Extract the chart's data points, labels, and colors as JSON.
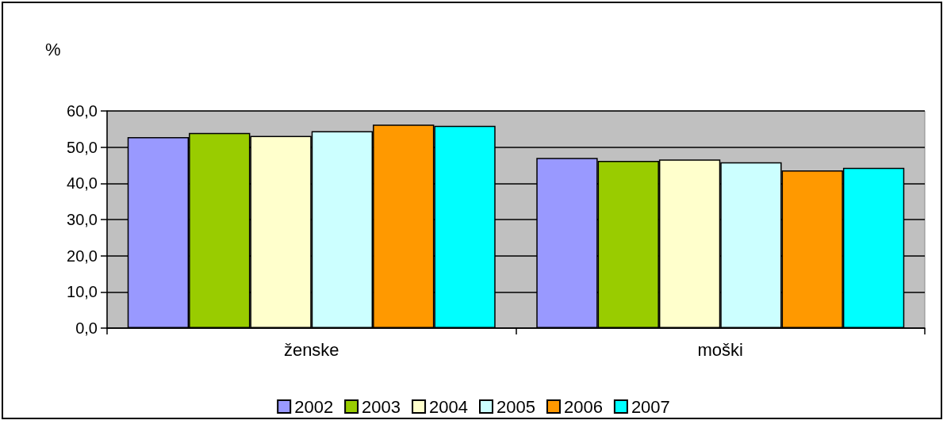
{
  "chart_data": {
    "type": "bar",
    "ylabel": "%",
    "categories": [
      "ženske",
      "moški"
    ],
    "series": [
      {
        "name": "2002",
        "color": "#9999ff",
        "values": [
          52.8,
          47.0
        ]
      },
      {
        "name": "2003",
        "color": "#99cc00",
        "values": [
          53.9,
          46.2
        ]
      },
      {
        "name": "2004",
        "color": "#ffffcc",
        "values": [
          53.1,
          46.6
        ]
      },
      {
        "name": "2005",
        "color": "#ccffff",
        "values": [
          54.4,
          45.8
        ]
      },
      {
        "name": "2006",
        "color": "#ff9900",
        "values": [
          56.2,
          43.6
        ]
      },
      {
        "name": "2007",
        "color": "#00ffff",
        "values": [
          55.9,
          44.3
        ]
      }
    ],
    "ylim": [
      0,
      60
    ],
    "yticks": [
      {
        "value": 0,
        "label": "0,0"
      },
      {
        "value": 10,
        "label": "10,0"
      },
      {
        "value": 20,
        "label": "20,0"
      },
      {
        "value": 30,
        "label": "30,0"
      },
      {
        "value": 40,
        "label": "40,0"
      },
      {
        "value": 50,
        "label": "50,0"
      },
      {
        "value": 60,
        "label": "60,0"
      }
    ],
    "grid": "y",
    "legend": "bottom"
  }
}
